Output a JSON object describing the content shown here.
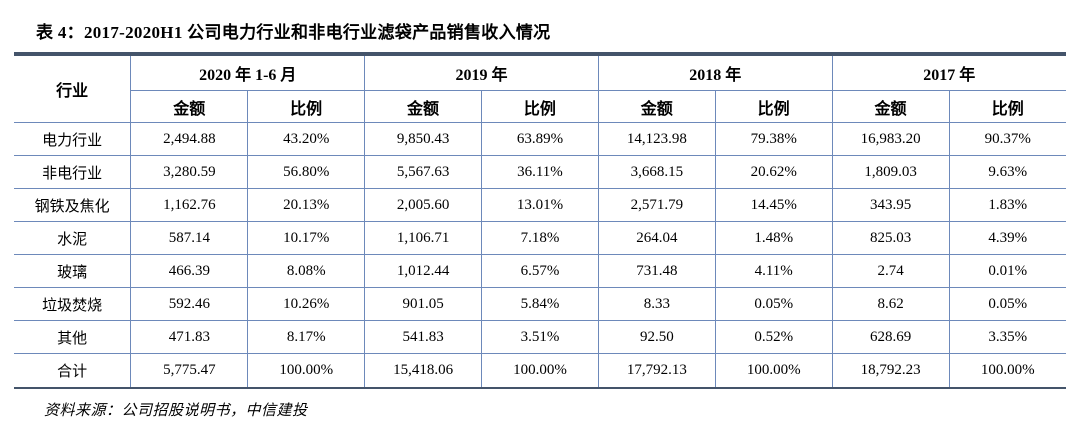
{
  "title": "表 4：2017-2020H1 公司电力行业和非电行业滤袋产品销售收入情况",
  "source": "资料来源：公司招股说明书，中信建投",
  "colors": {
    "grid_line": "#6d89ba",
    "heavy_rule": "#44546a",
    "text": "#000000",
    "background": "#ffffff"
  },
  "table": {
    "industry_header": "行业",
    "groups": [
      {
        "label": "2020 年 1-6 月",
        "sub": [
          "金额",
          "比例"
        ]
      },
      {
        "label": "2019 年",
        "sub": [
          "金额",
          "比例"
        ]
      },
      {
        "label": "2018 年",
        "sub": [
          "金额",
          "比例"
        ]
      },
      {
        "label": "2017 年",
        "sub": [
          "金额",
          "比例"
        ]
      }
    ],
    "rows": [
      {
        "industry": "电力行业",
        "values": [
          "2,494.88",
          "43.20%",
          "9,850.43",
          "63.89%",
          "14,123.98",
          "79.38%",
          "16,983.20",
          "90.37%"
        ]
      },
      {
        "industry": "非电行业",
        "values": [
          "3,280.59",
          "56.80%",
          "5,567.63",
          "36.11%",
          "3,668.15",
          "20.62%",
          "1,809.03",
          "9.63%"
        ]
      },
      {
        "industry": "钢铁及焦化",
        "values": [
          "1,162.76",
          "20.13%",
          "2,005.60",
          "13.01%",
          "2,571.79",
          "14.45%",
          "343.95",
          "1.83%"
        ]
      },
      {
        "industry": "水泥",
        "values": [
          "587.14",
          "10.17%",
          "1,106.71",
          "7.18%",
          "264.04",
          "1.48%",
          "825.03",
          "4.39%"
        ]
      },
      {
        "industry": "玻璃",
        "values": [
          "466.39",
          "8.08%",
          "1,012.44",
          "6.57%",
          "731.48",
          "4.11%",
          "2.74",
          "0.01%"
        ]
      },
      {
        "industry": "垃圾焚烧",
        "values": [
          "592.46",
          "10.26%",
          "901.05",
          "5.84%",
          "8.33",
          "0.05%",
          "8.62",
          "0.05%"
        ]
      },
      {
        "industry": "其他",
        "values": [
          "471.83",
          "8.17%",
          "541.83",
          "3.51%",
          "92.50",
          "0.52%",
          "628.69",
          "3.35%"
        ]
      },
      {
        "industry": "合计",
        "values": [
          "5,775.47",
          "100.00%",
          "15,418.06",
          "100.00%",
          "17,792.13",
          "100.00%",
          "18,792.23",
          "100.00%"
        ]
      }
    ]
  }
}
